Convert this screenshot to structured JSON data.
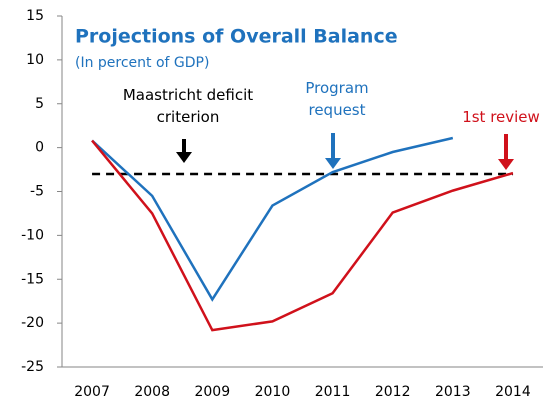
{
  "chart_data": {
    "type": "line",
    "title": "Projections of Overall Balance",
    "subtitle": "(In percent of GDP)",
    "categories": [
      "2007",
      "2008",
      "2009",
      "2010",
      "2011",
      "2012",
      "2013",
      "2014"
    ],
    "series": [
      {
        "name": "Program request",
        "color": "#1f72bd",
        "values": [
          0.8,
          -5.5,
          -17.3,
          -6.6,
          -2.8,
          -0.5,
          1.1,
          null
        ]
      },
      {
        "name": "1st review",
        "color": "#d0111b",
        "values": [
          0.8,
          -7.5,
          -20.8,
          -19.8,
          -16.6,
          -7.4,
          -4.9,
          -2.9
        ]
      }
    ],
    "reference_line": {
      "name": "Maastricht deficit criterion",
      "value": -3,
      "color": "#000000"
    },
    "ylim": [
      -25,
      15
    ],
    "yticks": [
      -25,
      -20,
      -15,
      -10,
      -5,
      0,
      5,
      10,
      15
    ],
    "grid": false
  }
}
